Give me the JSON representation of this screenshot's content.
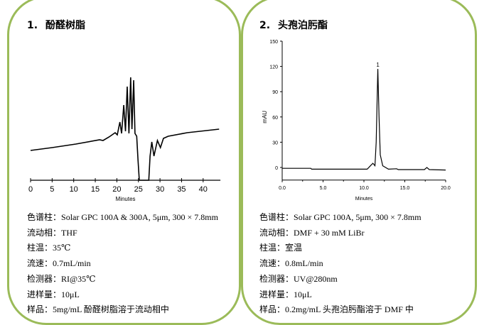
{
  "panel1": {
    "title_num": "1.",
    "title": "酚醛树脂",
    "params": [
      {
        "label": "色谱柱：",
        "value": "Solar GPC 100A & 300A, 5μm, 300 × 7.8mm"
      },
      {
        "label": "流动相：",
        "value": "THF"
      },
      {
        "label": "柱温：",
        "value": "35℃"
      },
      {
        "label": "流速：",
        "value": "0.7mL/min"
      },
      {
        "label": "检测器：",
        "value": "RI@35℃"
      },
      {
        "label": "进样量：",
        "value": "10μL"
      },
      {
        "label": "样品：",
        "value": "5mg/mL 酚醛树脂溶于流动相中"
      }
    ]
  },
  "panel2": {
    "title_num": "2.",
    "title": "头孢泊肟酯",
    "params": [
      {
        "label": "色谱柱：",
        "value": "Solar GPC 100A, 5μm, 300  × 7.8mm"
      },
      {
        "label": "流动相：",
        "value": "DMF + 30 mM LiBr"
      },
      {
        "label": "柱温：",
        "value": "室温"
      },
      {
        "label": "流速：",
        "value": "0.8mL/min"
      },
      {
        "label": "检测器：",
        "value": "UV@280nm"
      },
      {
        "label": "进样量：",
        "value": "10μL"
      },
      {
        "label": "样品：",
        "value": "0.2mg/mL 头孢泊肟酯溶于 DMF 中"
      }
    ]
  },
  "colors": {
    "border": "#9bbb59",
    "trace": "#000000"
  },
  "chart_data": [
    {
      "type": "line",
      "xlabel": "Minutes",
      "ylabel": "",
      "xlim": [
        0,
        44
      ],
      "xticks": [
        0,
        5,
        10,
        15,
        20,
        25,
        30,
        35,
        40
      ],
      "y_axis_shown": false,
      "grid": false,
      "series": [
        {
          "x": [
            0,
            5,
            10.5,
            16,
            16.8,
            18.2,
            19.6,
            20.1,
            20.7,
            21.1,
            21.6,
            22.0,
            22.4,
            22.8,
            23.2,
            23.5,
            23.9,
            24.2,
            24.6,
            24.9,
            25.2,
            27.4,
            27.7,
            28.1,
            28.6,
            29.4,
            30.1,
            30.8,
            31.9,
            36.3,
            43.7
          ],
          "y": [
            42,
            46,
            51,
            57,
            56,
            61,
            67,
            64,
            82,
            66,
            106,
            69,
            132,
            66,
            145,
            72,
            141,
            66,
            62,
            29,
            -20,
            -20,
            34,
            54,
            34,
            56,
            46,
            59,
            62,
            67,
            72
          ]
        }
      ]
    },
    {
      "type": "line",
      "xlabel": "Minutes",
      "ylabel": "mAU",
      "xlim": [
        0,
        20
      ],
      "ylim": [
        -15,
        150
      ],
      "xticks": [
        "0.0",
        "5.0",
        "10.0",
        "15.0",
        "20.0"
      ],
      "yticks": [
        "0",
        "30",
        "60",
        "90",
        "120",
        "150"
      ],
      "grid": false,
      "annotations": [
        {
          "text": "1",
          "x": 11.7,
          "y": 117
        }
      ],
      "series": [
        {
          "x": [
            0,
            3.5,
            3.6,
            10.4,
            10.8,
            11.1,
            11.35,
            11.5,
            11.7,
            11.85,
            12.0,
            12.3,
            13,
            14,
            14.2,
            17.4,
            17.7,
            18,
            20
          ],
          "y": [
            -1,
            -1,
            -2,
            -2,
            2,
            5,
            2,
            30,
            117,
            60,
            15,
            2,
            -2,
            -1.5,
            -2.5,
            -2.5,
            0,
            -2.5,
            -3
          ]
        }
      ]
    }
  ]
}
